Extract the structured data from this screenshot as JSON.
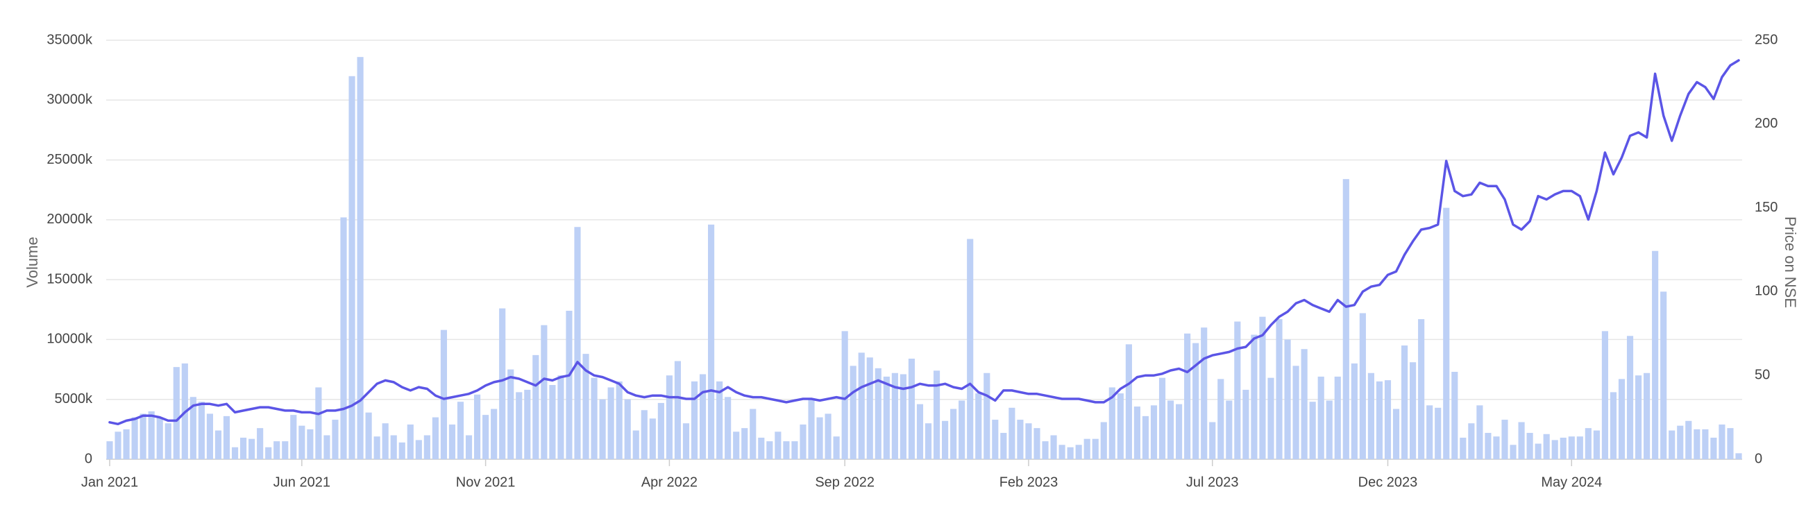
{
  "chart_data": {
    "type": "combo",
    "y_label": "Volume",
    "y2_label": "Price on NSE",
    "categories": [
      "Jan 2021",
      null,
      null,
      null,
      null,
      null,
      null,
      null,
      null,
      null,
      null,
      null,
      null,
      null,
      null,
      null,
      null,
      null,
      null,
      null,
      null,
      null,
      null,
      "Jun 2021",
      null,
      null,
      null,
      null,
      null,
      null,
      null,
      null,
      null,
      null,
      null,
      null,
      null,
      null,
      null,
      null,
      null,
      null,
      null,
      null,
      null,
      "Nov 2021",
      null,
      null,
      null,
      null,
      null,
      null,
      null,
      null,
      null,
      null,
      null,
      null,
      null,
      null,
      null,
      null,
      null,
      null,
      null,
      null,
      null,
      "Apr 2022",
      null,
      null,
      null,
      null,
      null,
      null,
      null,
      null,
      null,
      null,
      null,
      null,
      null,
      null,
      null,
      null,
      null,
      null,
      null,
      null,
      "Sep 2022",
      null,
      null,
      null,
      null,
      null,
      null,
      null,
      null,
      null,
      null,
      null,
      null,
      null,
      null,
      null,
      null,
      null,
      null,
      null,
      null,
      null,
      "Feb 2023",
      null,
      null,
      null,
      null,
      null,
      null,
      null,
      null,
      null,
      null,
      null,
      null,
      null,
      null,
      null,
      null,
      null,
      null,
      null,
      null,
      null,
      "Jul 2023",
      null,
      null,
      null,
      null,
      null,
      null,
      null,
      null,
      null,
      null,
      null,
      null,
      null,
      null,
      null,
      null,
      null,
      null,
      null,
      null,
      "Dec 2023",
      null,
      null,
      null,
      null,
      null,
      null,
      null,
      null,
      null,
      null,
      null,
      null,
      null,
      null,
      null,
      null,
      null,
      null,
      null,
      null,
      null,
      "May 2024",
      null,
      null,
      null,
      null,
      null,
      null,
      null,
      null,
      null,
      null,
      null,
      null,
      null,
      null,
      null,
      null,
      null,
      null,
      null,
      null
    ],
    "series": [
      {
        "type": "bar",
        "color": "#bdd0f6",
        "values": [
          1500,
          2300,
          2500,
          3500,
          3800,
          4000,
          3500,
          3000,
          7700,
          8000,
          5200,
          4800,
          3800,
          2400,
          3600,
          1000,
          1800,
          1700,
          2600,
          1000,
          1500,
          1500,
          3700,
          2800,
          2500,
          6000,
          2000,
          3300,
          20200,
          32000,
          33600,
          3900,
          1900,
          3000,
          2000,
          1400,
          2900,
          1600,
          2000,
          3500,
          10800,
          2900,
          4800,
          2000,
          5400,
          3700,
          4200,
          12600,
          7500,
          5600,
          5800,
          8700,
          11200,
          6200,
          7000,
          12400,
          19400,
          8800,
          6800,
          5000,
          6000,
          6500,
          5000,
          2400,
          4100,
          3400,
          4700,
          7000,
          8200,
          3000,
          6500,
          7100,
          19600,
          6500,
          5200,
          2300,
          2600,
          4200,
          1800,
          1500,
          2300,
          1500,
          1500,
          2900,
          5100,
          3500,
          3800,
          1900,
          10700,
          7800,
          8900,
          8500,
          7600,
          6900,
          7200,
          7100,
          8400,
          4600,
          3000,
          7400,
          3200,
          4200,
          4900,
          18400,
          5500,
          7200,
          3300,
          2200,
          4300,
          3300,
          3000,
          2600,
          1500,
          2000,
          1200,
          1000,
          1200,
          1700,
          1700,
          3100,
          6000,
          5500,
          9600,
          4400,
          3600,
          4500,
          6800,
          4900,
          4600,
          10500,
          9700,
          11000,
          3100,
          6700,
          4900,
          11500,
          5800,
          10400,
          11900,
          6800,
          11700,
          10000,
          7800,
          9200,
          4800,
          6900,
          4900,
          6900,
          23400,
          8000,
          12200,
          7200,
          6500,
          6600,
          4200,
          9500,
          8100,
          11700,
          4500,
          4300,
          21000,
          7300,
          1800,
          3000,
          4500,
          2200,
          1900,
          3300,
          1200,
          3100,
          2200,
          1300,
          2100,
          1600,
          1800,
          1900,
          1900,
          2600,
          2400,
          10700,
          5600,
          6700,
          10300,
          7000,
          7200,
          17400,
          14000,
          2400,
          2800,
          3200,
          2500,
          2500,
          1800,
          2900,
          2600,
          500
        ]
      },
      {
        "type": "line",
        "axis": "y2",
        "color": "#5b55e6",
        "values": [
          22,
          21,
          23,
          24,
          26,
          26,
          25,
          23,
          23,
          28,
          32,
          33,
          33,
          32,
          33,
          28,
          29,
          30,
          31,
          31,
          30,
          29,
          29,
          28,
          28,
          27,
          29,
          29,
          30,
          32,
          35,
          40,
          45,
          47,
          46,
          43,
          41,
          43,
          42,
          38,
          36,
          37,
          38,
          39,
          41,
          44,
          46,
          47,
          49,
          48,
          46,
          44,
          48,
          47,
          49,
          50,
          58,
          53,
          50,
          49,
          47,
          45,
          40,
          38,
          37,
          38,
          38,
          37,
          37,
          36,
          36,
          40,
          41,
          40,
          43,
          40,
          38,
          37,
          37,
          36,
          35,
          34,
          35,
          36,
          36,
          35,
          36,
          37,
          36,
          40,
          43,
          45,
          47,
          45,
          43,
          42,
          43,
          45,
          44,
          44,
          45,
          43,
          42,
          45,
          40,
          38,
          35,
          41,
          41,
          40,
          39,
          39,
          38,
          37,
          36,
          36,
          36,
          35,
          34,
          34,
          37,
          42,
          45,
          49,
          50,
          50,
          51,
          53,
          54,
          52,
          56,
          60,
          62,
          63,
          64,
          66,
          67,
          72,
          74,
          80,
          85,
          88,
          93,
          95,
          92,
          90,
          88,
          95,
          91,
          92,
          100,
          103,
          104,
          110,
          112,
          122,
          130,
          137,
          138,
          140,
          178,
          160,
          157,
          158,
          165,
          163,
          163,
          155,
          140,
          137,
          142,
          157,
          155,
          158,
          160,
          160,
          157,
          143,
          160,
          183,
          170,
          180,
          193,
          195,
          192,
          230,
          205,
          190,
          205,
          218,
          225,
          222,
          215,
          228,
          235,
          238
        ]
      }
    ],
    "ylim": [
      0,
      35000
    ],
    "yticks": [
      0,
      {
        "value": 5000,
        "label": "5000k"
      },
      {
        "value": 10000,
        "label": "10000k"
      },
      {
        "value": 15000,
        "label": "15000k"
      },
      {
        "value": 20000,
        "label": "20000k"
      },
      {
        "value": 25000,
        "label": "25000k"
      },
      {
        "value": 30000,
        "label": "30000k"
      },
      {
        "value": 35000,
        "label": "35000k"
      }
    ],
    "y2lim": [
      0,
      250
    ],
    "y2ticks": [
      0,
      50,
      100,
      150,
      200,
      250
    ],
    "grid": true
  }
}
